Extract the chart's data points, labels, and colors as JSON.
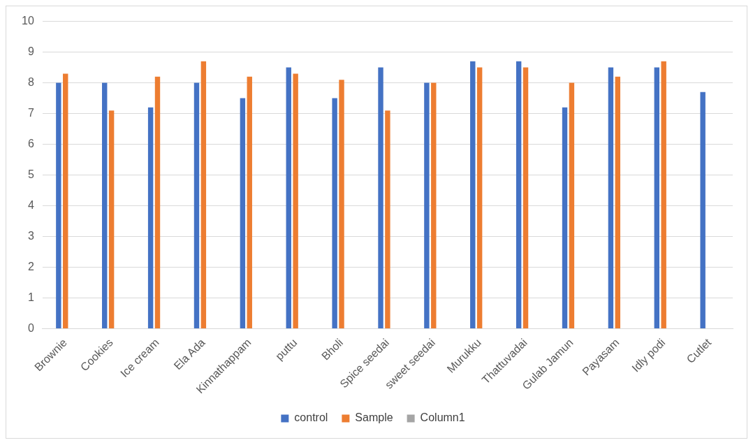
{
  "chart_data": {
    "type": "bar",
    "categories": [
      "Brownie",
      "Cookies",
      "Ice cream",
      "Ela Ada",
      "Kinnathappam",
      "puttu",
      "Bholi",
      "Spice seedai",
      "sweet seedai",
      "Murukku",
      "Thattuvadai",
      "Gulab Jamun",
      "Payasam",
      "Idly podi",
      "Cutlet"
    ],
    "series": [
      {
        "name": "control",
        "color": "#4472c4",
        "values": [
          8,
          8,
          7.2,
          8,
          7.5,
          8.5,
          7.5,
          8.5,
          8,
          8.7,
          8.7,
          7.2,
          8.5,
          8.5,
          7.7
        ]
      },
      {
        "name": "Sample",
        "color": "#ed7d31",
        "values": [
          8.3,
          7.1,
          8.2,
          8.7,
          8.2,
          8.3,
          8.1,
          7.1,
          8,
          8.5,
          8.5,
          8,
          8.2,
          8.7,
          null
        ]
      },
      {
        "name": "Column1",
        "color": "#a5a5a5",
        "values": [
          null,
          null,
          null,
          null,
          null,
          null,
          null,
          null,
          null,
          null,
          null,
          null,
          null,
          null,
          null
        ]
      }
    ],
    "ylim": [
      0,
      10
    ],
    "yticks": [
      0,
      1,
      2,
      3,
      4,
      5,
      6,
      7,
      8,
      9,
      10
    ],
    "grid": "y",
    "legend": "bottom"
  }
}
